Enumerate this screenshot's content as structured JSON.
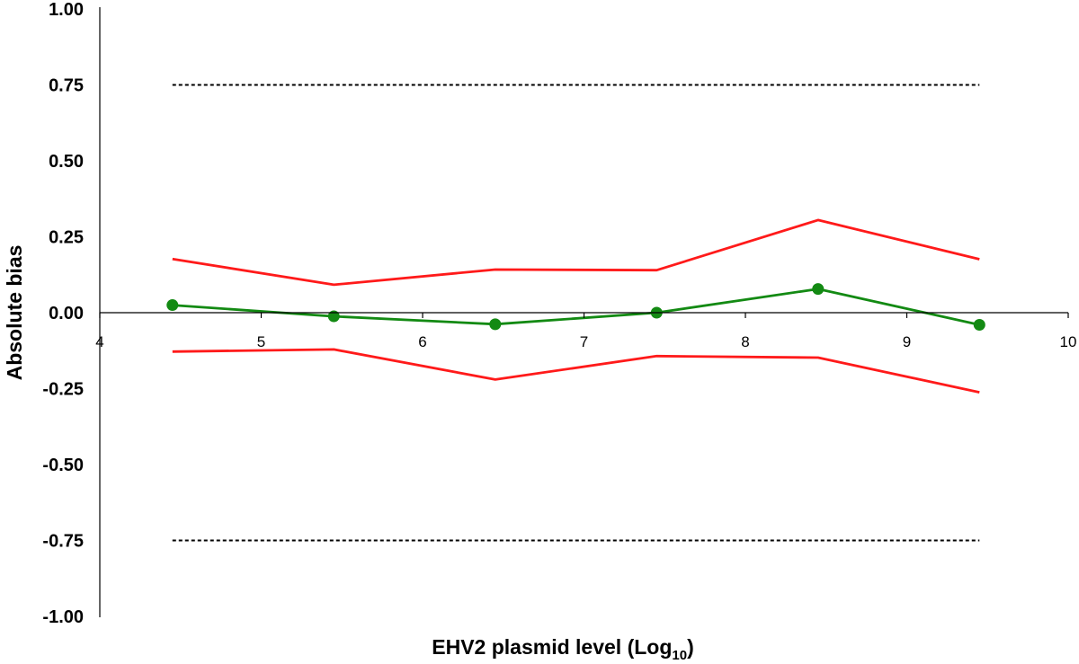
{
  "chart_data": {
    "type": "line",
    "xlabel": {
      "text": "EHV2 plasmid level (Log",
      "subscript": "10",
      "suffix": ")"
    },
    "ylabel": "Absolute bias",
    "xlim": [
      4,
      10
    ],
    "ylim": [
      -1.0,
      1.0
    ],
    "x_ticks": [
      "4",
      "5",
      "6",
      "7",
      "8",
      "9",
      "10"
    ],
    "y_ticks": [
      "1.00",
      "0.75",
      "0.50",
      "0.25",
      "0.00",
      "-0.25",
      "-0.50",
      "-0.75",
      "-1.00"
    ],
    "grid": false,
    "series": [
      {
        "x": [
          4.45,
          5.45,
          6.45,
          7.45,
          8.45,
          9.45
        ],
        "values": [
          0.025,
          -0.012,
          -0.038,
          0.0,
          0.078,
          -0.04
        ],
        "color": "#138a13",
        "markers": true
      },
      {
        "x": [
          4.45,
          5.45,
          6.45,
          7.45,
          8.45,
          9.45
        ],
        "values": [
          0.177,
          0.092,
          0.142,
          0.14,
          0.305,
          0.176
        ],
        "color": "#ff1a1a",
        "markers": false
      },
      {
        "x": [
          4.45,
          5.45,
          6.45,
          7.45,
          8.45,
          9.45
        ],
        "values": [
          -0.128,
          -0.121,
          -0.22,
          -0.143,
          -0.148,
          -0.262
        ],
        "color": "#ff1a1a",
        "markers": false
      }
    ],
    "reference_lines": [
      {
        "y": 0.75,
        "x": [
          4.45,
          9.45
        ],
        "style": "dotted",
        "color": "#000000"
      },
      {
        "y": -0.75,
        "x": [
          4.45,
          9.45
        ],
        "style": "dotted",
        "color": "#000000"
      }
    ]
  }
}
